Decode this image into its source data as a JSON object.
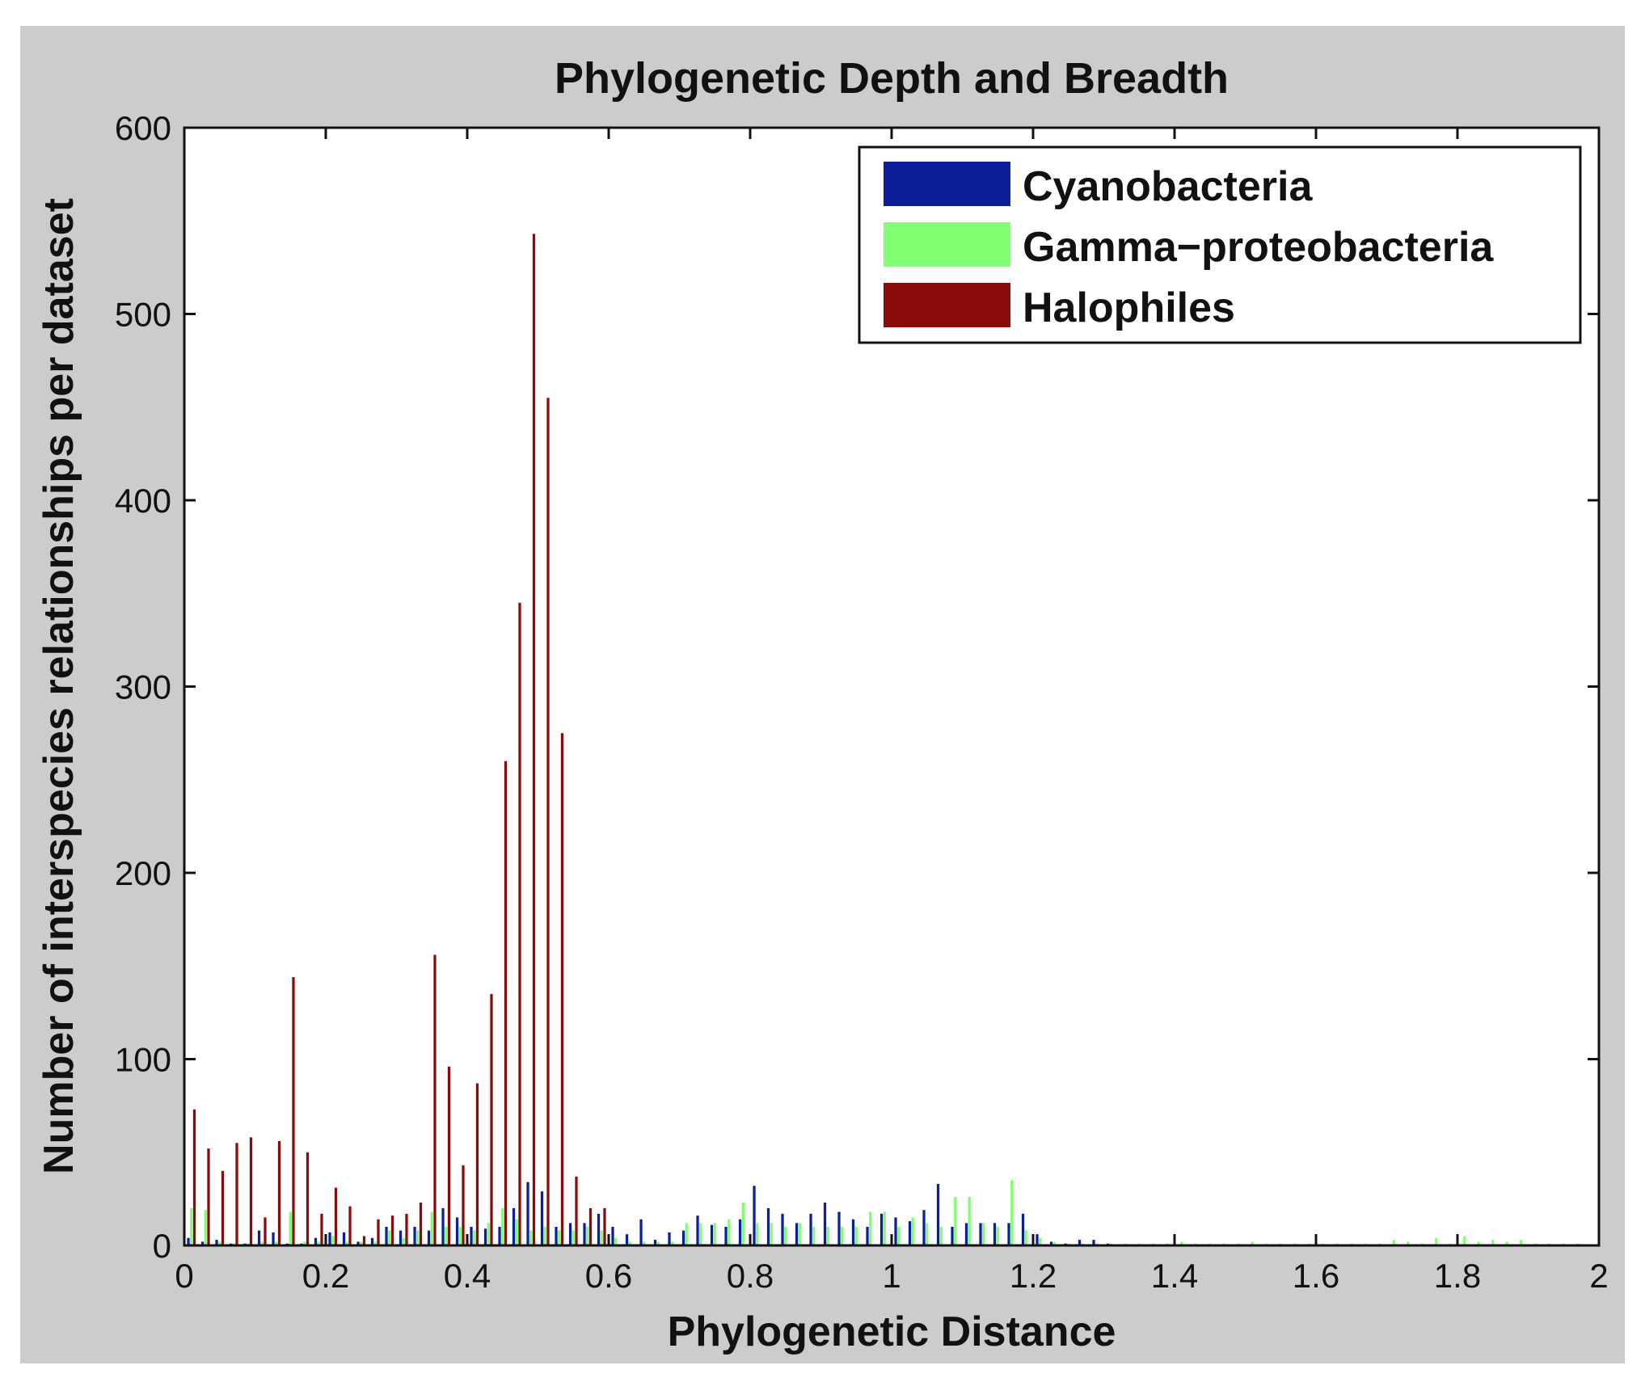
{
  "chart_data": {
    "type": "bar",
    "title": "Phylogenetic Depth and Breadth",
    "xlabel": "Phylogenetic Distance",
    "ylabel": "Number of interspecies relationships per dataset",
    "xlim": [
      0,
      2
    ],
    "ylim": [
      0,
      600
    ],
    "x_ticks": [
      "0",
      "0.2",
      "0.4",
      "0.6",
      "0.8",
      "1",
      "1.2",
      "1.4",
      "1.6",
      "1.8",
      "2"
    ],
    "y_ticks": [
      "0",
      "100",
      "200",
      "300",
      "400",
      "500",
      "600"
    ],
    "grid": false,
    "legend_position": "top-right",
    "colors": {
      "figure_background": "#cccccc",
      "plot_background": "#ffffff",
      "axis": "#111111"
    },
    "x": [
      0.0,
      0.02,
      0.04,
      0.06,
      0.08,
      0.1,
      0.12,
      0.14,
      0.16,
      0.18,
      0.2,
      0.22,
      0.24,
      0.26,
      0.28,
      0.3,
      0.32,
      0.34,
      0.36,
      0.38,
      0.4,
      0.42,
      0.44,
      0.46,
      0.48,
      0.5,
      0.52,
      0.54,
      0.56,
      0.58,
      0.6,
      0.62,
      0.64,
      0.66,
      0.68,
      0.7,
      0.72,
      0.74,
      0.76,
      0.78,
      0.8,
      0.82,
      0.84,
      0.86,
      0.88,
      0.9,
      0.92,
      0.94,
      0.96,
      0.98,
      1.0,
      1.02,
      1.04,
      1.06,
      1.08,
      1.1,
      1.12,
      1.14,
      1.16,
      1.18,
      1.2,
      1.22,
      1.24,
      1.26,
      1.28,
      1.3,
      1.32,
      1.34,
      1.36,
      1.38,
      1.4,
      1.42,
      1.44,
      1.46,
      1.48,
      1.5,
      1.52,
      1.54,
      1.56,
      1.58,
      1.6,
      1.62,
      1.64,
      1.66,
      1.68,
      1.7,
      1.72,
      1.74,
      1.76,
      1.78,
      1.8,
      1.82,
      1.84,
      1.86,
      1.88,
      1.9,
      1.92,
      1.94,
      1.96,
      1.98
    ],
    "series": [
      {
        "name": "Cyanobacteria",
        "color": "#0a1f99",
        "values": [
          4,
          2,
          3,
          1,
          1,
          8,
          7,
          1,
          1,
          4,
          7,
          7,
          2,
          4,
          10,
          8,
          10,
          8,
          20,
          15,
          10,
          9,
          10,
          20,
          34,
          29,
          10,
          12,
          12,
          17,
          10,
          6,
          14,
          3,
          7,
          8,
          16,
          11,
          10,
          14,
          32,
          20,
          17,
          12,
          17,
          23,
          18,
          14,
          10,
          17,
          15,
          13,
          19,
          33,
          10,
          12,
          12,
          12,
          12,
          17,
          6,
          2,
          1,
          3,
          3,
          1,
          0,
          0,
          0,
          0,
          0,
          0,
          0,
          0,
          0,
          0,
          0,
          0,
          0,
          0,
          0,
          0,
          0,
          0,
          0,
          0,
          0,
          0,
          0,
          0,
          0,
          0,
          0,
          0,
          0,
          0,
          0,
          0,
          0,
          0
        ]
      },
      {
        "name": "Gamma−proteobacteria",
        "color": "#80ff70",
        "values": [
          20,
          19,
          2,
          1,
          1,
          2,
          2,
          18,
          2,
          2,
          5,
          2,
          2,
          2,
          8,
          4,
          8,
          18,
          10,
          10,
          8,
          12,
          20,
          14,
          8,
          10,
          8,
          8,
          10,
          8,
          4,
          2,
          2,
          2,
          2,
          12,
          12,
          12,
          14,
          23,
          12,
          12,
          10,
          12,
          10,
          10,
          10,
          10,
          18,
          18,
          10,
          15,
          12,
          10,
          26,
          26,
          12,
          10,
          35,
          8,
          4,
          2,
          1,
          1,
          1,
          1,
          1,
          1,
          1,
          1,
          2,
          1,
          1,
          1,
          1,
          2,
          1,
          1,
          1,
          1,
          1,
          1,
          1,
          1,
          1,
          3,
          2,
          1,
          4,
          1,
          5,
          2,
          3,
          2,
          3,
          1,
          1,
          1,
          1,
          0
        ]
      },
      {
        "name": "Halophiles",
        "color": "#8b0a0a",
        "values": [
          73,
          52,
          40,
          55,
          58,
          15,
          56,
          144,
          50,
          17,
          31,
          21,
          5,
          14,
          16,
          17,
          23,
          156,
          96,
          43,
          87,
          135,
          260,
          345,
          543,
          455,
          275,
          37,
          20,
          20,
          0,
          0,
          0,
          0,
          0,
          0,
          0,
          0,
          0,
          0,
          0,
          0,
          0,
          0,
          0,
          0,
          0,
          0,
          0,
          0,
          0,
          0,
          0,
          0,
          0,
          0,
          0,
          0,
          0,
          0,
          0,
          0,
          0,
          0,
          0,
          0,
          0,
          0,
          0,
          0,
          0,
          0,
          0,
          0,
          0,
          0,
          0,
          0,
          0,
          0,
          0,
          0,
          0,
          0,
          0,
          0,
          0,
          0,
          0,
          0,
          0,
          0,
          0,
          0,
          0,
          0,
          0,
          0,
          0,
          0
        ]
      }
    ]
  }
}
